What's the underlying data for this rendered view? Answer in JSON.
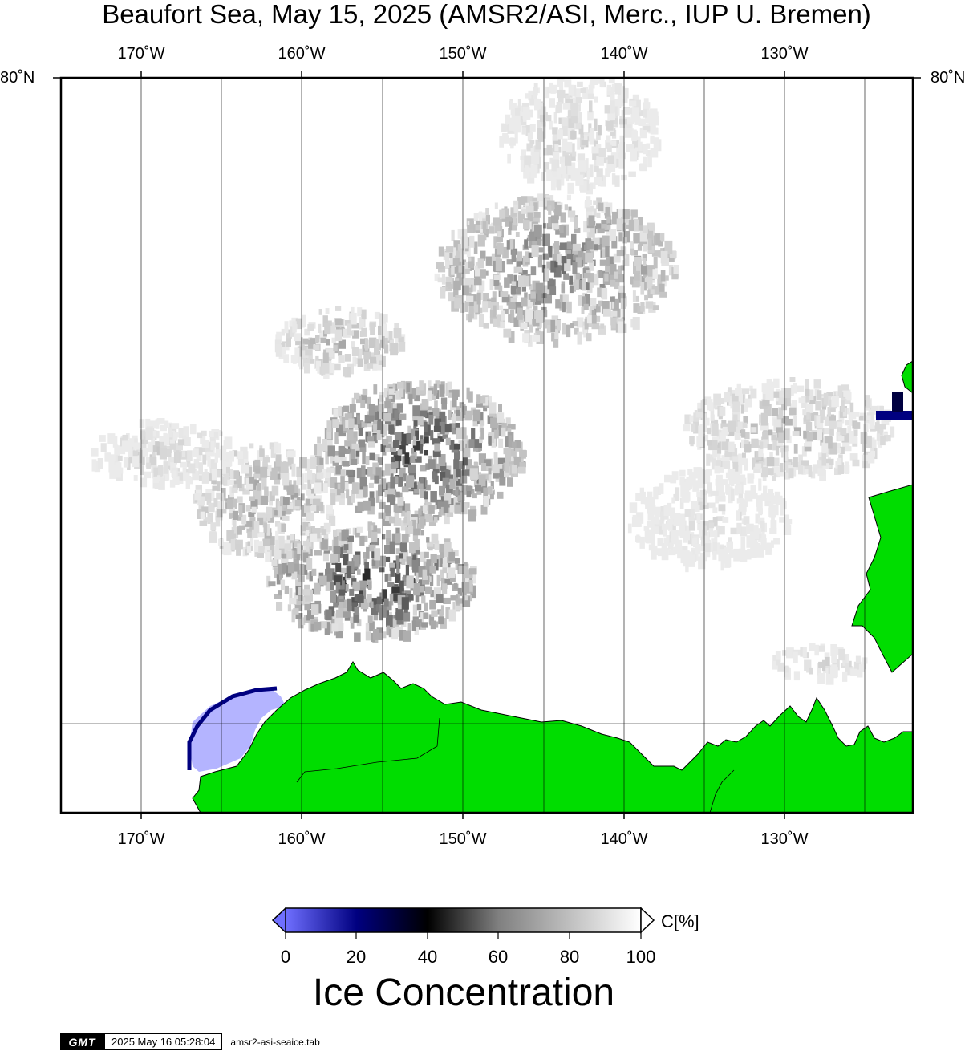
{
  "title": "Beaufort Sea, May 15, 2025 (AMSR2/ASI, Merc., IUP U. Bremen)",
  "lon_labels": [
    "170˚W",
    "160˚W",
    "150˚W",
    "140˚W",
    "130˚W"
  ],
  "lat_labels": {
    "left": "80˚N",
    "right": "80˚N"
  },
  "colorbar": {
    "ticks": [
      "0",
      "20",
      "40",
      "60",
      "80",
      "100"
    ],
    "unit": "C[%]",
    "title": "Ice Concentration"
  },
  "colors": {
    "land": "#00dd00",
    "low_concentration_water": "#b4b4ff",
    "colormap": [
      "#6f6fff",
      "#000080",
      "#000000",
      "#808080",
      "#ffffff"
    ]
  },
  "footer": {
    "logo": "GMT",
    "timestamp": "2025 May 16 05:28:04",
    "file": "amsr2-asi-seaice.tab"
  }
}
